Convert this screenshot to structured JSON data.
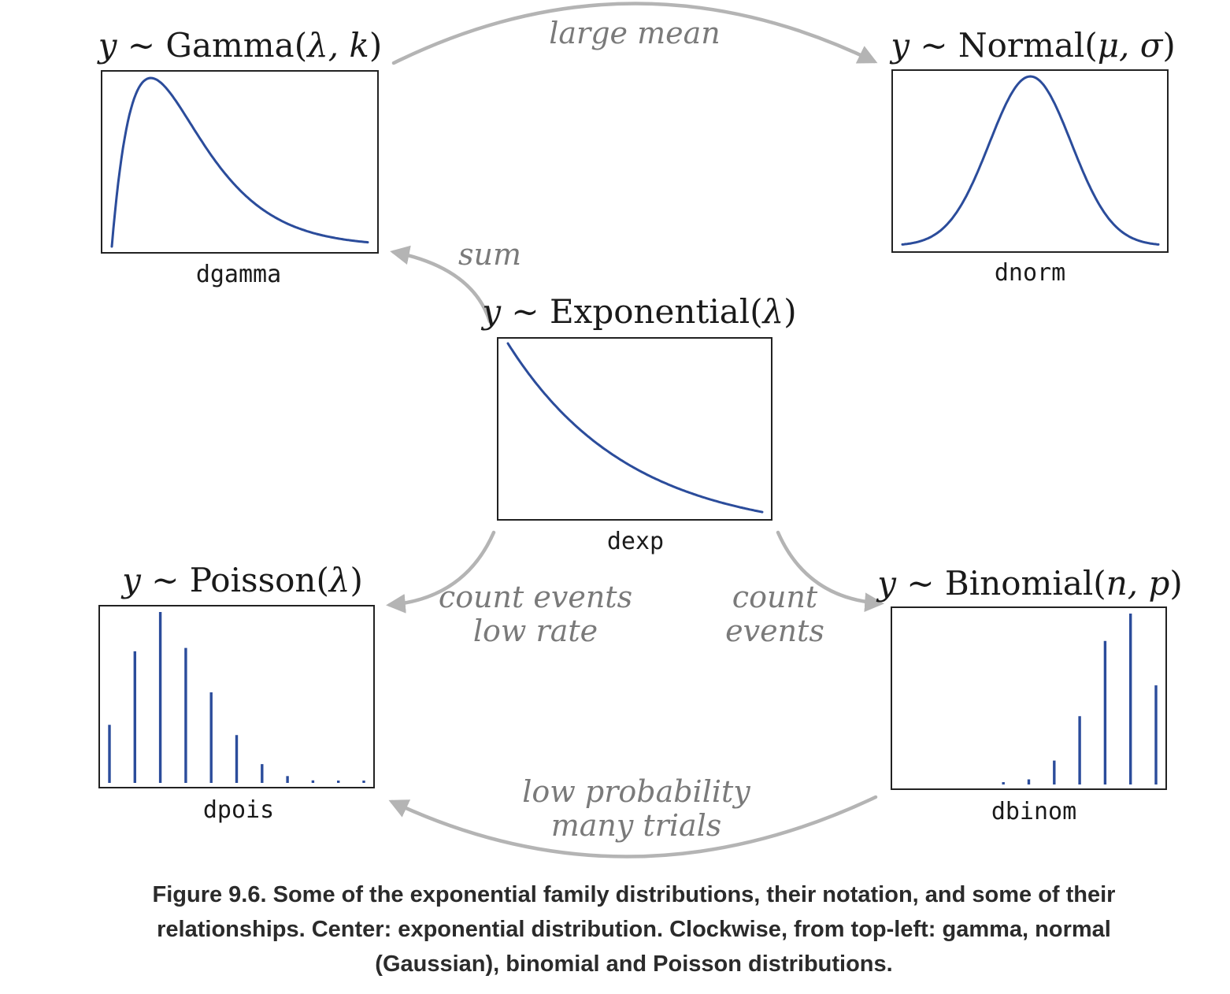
{
  "colors": {
    "curve": "#2b4c9b",
    "arrow": "#b4b4b4",
    "box_border": "#222222",
    "edge_label": "#7a7a7a"
  },
  "nodes": {
    "gamma": {
      "title_lhs": "y",
      "title_sim": "~",
      "title_name": "Gamma",
      "title_open": "(",
      "title_params": "λ, k",
      "title_close": ")",
      "function": "dgamma",
      "shape": "right-skewed density curve"
    },
    "normal": {
      "title_lhs": "y",
      "title_sim": "~",
      "title_name": "Normal",
      "title_open": "(",
      "title_params": "μ, σ",
      "title_close": ")",
      "function": "dnorm",
      "shape": "symmetric bell curve"
    },
    "exponential": {
      "title_lhs": "y",
      "title_sim": "~",
      "title_name": "Exponential",
      "title_open": "(",
      "title_params": "λ",
      "title_close": ")",
      "function": "dexp",
      "shape": "decaying curve"
    },
    "poisson": {
      "title_lhs": "y",
      "title_sim": "~",
      "title_name": "Poisson",
      "title_open": "(",
      "title_params": "λ",
      "title_close": ")",
      "function": "dpois",
      "spikes": [
        0.34,
        0.77,
        1.0,
        0.79,
        0.53,
        0.28,
        0.11,
        0.04,
        0.015,
        0.01,
        0.01
      ]
    },
    "binomial": {
      "title_lhs": "y",
      "title_sim": "~",
      "title_name": "Binomial",
      "title_open": "(",
      "title_params": "n, p",
      "title_close": ")",
      "function": "dbinom",
      "spikes": [
        0,
        0,
        0,
        0,
        0.01,
        0.03,
        0.14,
        0.4,
        0.84,
        1.0,
        0.58
      ]
    }
  },
  "edges": [
    {
      "from": "gamma",
      "to": "normal",
      "label_lines": [
        "large mean"
      ]
    },
    {
      "from": "exponential",
      "to": "gamma",
      "label_lines": [
        "sum"
      ]
    },
    {
      "from": "exponential",
      "to": "poisson",
      "label_lines": [
        "count events",
        "low rate"
      ]
    },
    {
      "from": "exponential",
      "to": "binomial",
      "label_lines": [
        "count",
        "events"
      ]
    },
    {
      "from": "binomial",
      "to": "poisson",
      "label_lines": [
        "low probability",
        "many trials"
      ]
    }
  ],
  "caption": "Figure 9.6. Some of the exponential family distributions, their notation, and some of their relationships. Center: exponential distribution. Clockwise, from top-left: gamma, normal (Gaussian), binomial and Poisson distributions."
}
